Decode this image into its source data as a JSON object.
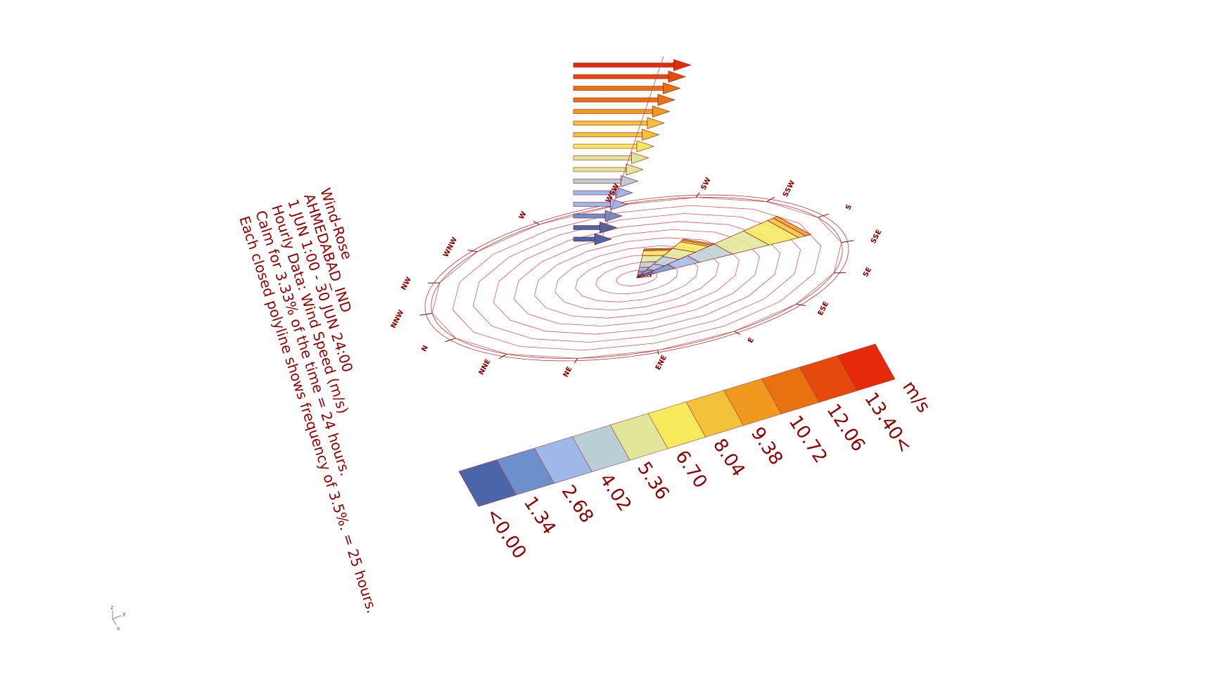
{
  "chart_data": {
    "type": "wind-rose",
    "info_lines": [
      "Wind-Rose",
      "AHMEDABAD_IND",
      "1 JUN 1:00 - 30 JUN 24:00",
      "Hourly Data: Wind Speed (m/s)",
      "Calm for 3.33% of the time = 24 hours.",
      "Each closed polyline shows frequency of 3.5%. = 25 hours."
    ],
    "directions": [
      "N",
      "NNE",
      "NE",
      "ENE",
      "E",
      "ESE",
      "SE",
      "SSE",
      "S",
      "SSW",
      "SW",
      "WSW",
      "W",
      "WNW",
      "NW",
      "NNW"
    ],
    "ring_frequency_percent": 3.5,
    "legend": {
      "unit": "m/s",
      "labels": [
        "<0.00",
        "1.34",
        "2.68",
        "4.02",
        "5.36",
        "6.70",
        "8.04",
        "9.38",
        "10.72",
        "12.06",
        "13.40<"
      ],
      "colors": [
        "#4a66a8",
        "#6d8fcb",
        "#9fb8ea",
        "#b9cfd6",
        "#e1e698",
        "#f6ea5c",
        "#f4c13b",
        "#ef9a1e",
        "#e8720f",
        "#e44a0c",
        "#e42a0a"
      ]
    },
    "petals": [
      {
        "direction": "S",
        "frequency_percent": 31.0
      },
      {
        "direction": "SSW",
        "frequency_percent": 17.0
      },
      {
        "direction": "SW",
        "frequency_percent": 13.0
      },
      {
        "direction": "SSE",
        "frequency_percent": 2.5
      }
    ],
    "vertical_arrows_count": 16
  }
}
